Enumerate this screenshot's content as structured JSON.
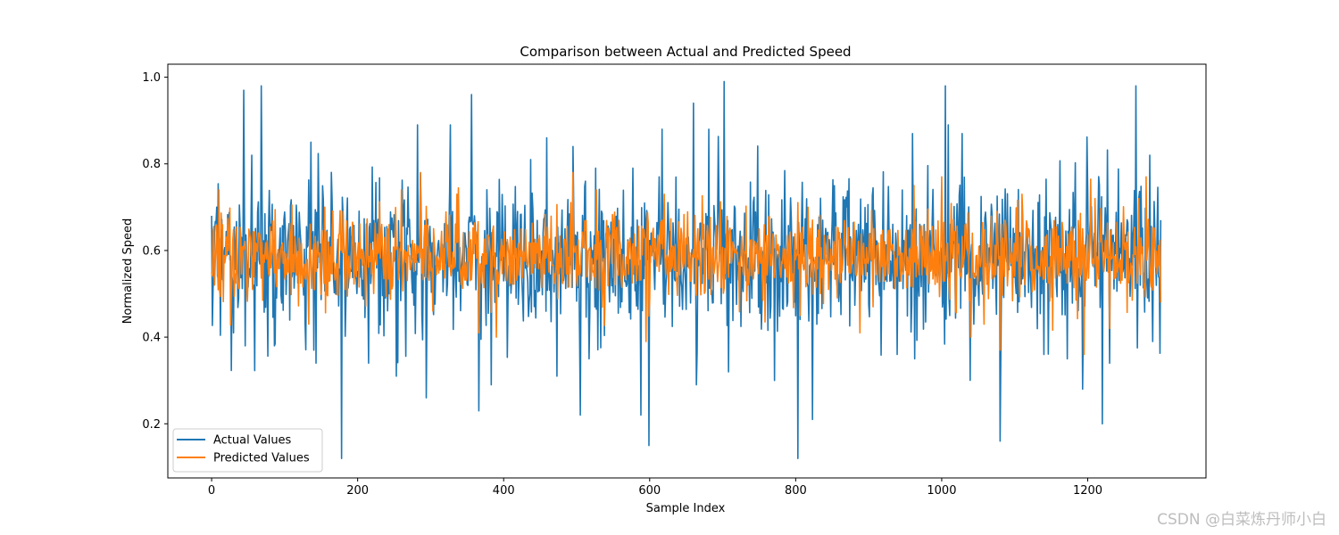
{
  "chart_data": {
    "type": "line",
    "title": "Comparison between Actual and Predicted Speed",
    "xlabel": "Sample Index",
    "ylabel": "Normalized Speed",
    "xlim": [
      -60,
      1362
    ],
    "ylim": [
      0.075,
      1.03
    ],
    "xticks": [
      0,
      200,
      400,
      600,
      800,
      1000,
      1200
    ],
    "yticks": [
      0.2,
      0.4,
      0.6,
      0.8,
      1.0
    ],
    "ytick_labels": [
      "0.2",
      "0.4",
      "0.6",
      "0.8",
      "1.0"
    ],
    "n_points": 1301,
    "legend_position": "lower-left",
    "series": [
      {
        "name": "Actual Values",
        "color": "#1f77b4",
        "base": 0.585,
        "spread": 0.085,
        "anchors": [
          [
            0,
            0.68
          ],
          [
            8,
            0.54
          ],
          [
            30,
            0.41
          ],
          [
            44,
            0.97
          ],
          [
            46,
            0.38
          ],
          [
            55,
            0.82
          ],
          [
            68,
            0.98
          ],
          [
            86,
            0.38
          ],
          [
            136,
            0.85
          ],
          [
            140,
            0.37
          ],
          [
            143,
            0.34
          ],
          [
            178,
            0.12
          ],
          [
            215,
            0.34
          ],
          [
            253,
            0.31
          ],
          [
            282,
            0.89
          ],
          [
            294,
            0.26
          ],
          [
            327,
            0.89
          ],
          [
            356,
            0.96
          ],
          [
            366,
            0.23
          ],
          [
            383,
            0.29
          ],
          [
            437,
            0.81
          ],
          [
            459,
            0.86
          ],
          [
            473,
            0.31
          ],
          [
            495,
            0.84
          ],
          [
            505,
            0.22
          ],
          [
            517,
            0.35
          ],
          [
            577,
            0.79
          ],
          [
            588,
            0.22
          ],
          [
            599,
            0.15
          ],
          [
            613,
            0.77
          ],
          [
            617,
            0.88
          ],
          [
            660,
            0.94
          ],
          [
            664,
            0.29
          ],
          [
            681,
            0.88
          ],
          [
            702,
            0.99
          ],
          [
            708,
            0.32
          ],
          [
            771,
            0.3
          ],
          [
            803,
            0.12
          ],
          [
            823,
            0.21
          ],
          [
            960,
            0.87
          ],
          [
            963,
            0.35
          ],
          [
            1005,
            0.98
          ],
          [
            1009,
            0.89
          ],
          [
            1028,
            0.87
          ],
          [
            1044,
            0.43
          ],
          [
            1080,
            0.16
          ],
          [
            1140,
            0.36
          ],
          [
            1172,
            0.35
          ],
          [
            1193,
            0.28
          ],
          [
            1220,
            0.2
          ],
          [
            1230,
            0.34
          ],
          [
            1266,
            0.98
          ],
          [
            1285,
            0.82
          ],
          [
            1289,
            0.39
          ],
          [
            1300,
            0.67
          ]
        ]
      },
      {
        "name": "Predicted Values",
        "color": "#ff7f0e",
        "base": 0.585,
        "spread": 0.05,
        "anchors": [
          [
            0,
            0.55
          ],
          [
            10,
            0.74
          ],
          [
            133,
            0.43
          ],
          [
            155,
            0.7
          ],
          [
            260,
            0.74
          ],
          [
            286,
            0.78
          ],
          [
            336,
            0.73
          ],
          [
            366,
            0.41
          ],
          [
            390,
            0.4
          ],
          [
            495,
            0.78
          ],
          [
            527,
            0.74
          ],
          [
            595,
            0.39
          ],
          [
            620,
            0.73
          ],
          [
            806,
            0.45
          ],
          [
            888,
            0.41
          ],
          [
            962,
            0.75
          ],
          [
            1000,
            0.77
          ],
          [
            1040,
            0.4
          ],
          [
            1058,
            0.43
          ],
          [
            1080,
            0.37
          ],
          [
            1110,
            0.73
          ],
          [
            1195,
            0.36
          ],
          [
            1210,
            0.72
          ],
          [
            1230,
            0.42
          ],
          [
            1280,
            0.77
          ],
          [
            1300,
            0.48
          ]
        ]
      }
    ]
  },
  "watermark": "CSDN @白菜炼丹师小白"
}
